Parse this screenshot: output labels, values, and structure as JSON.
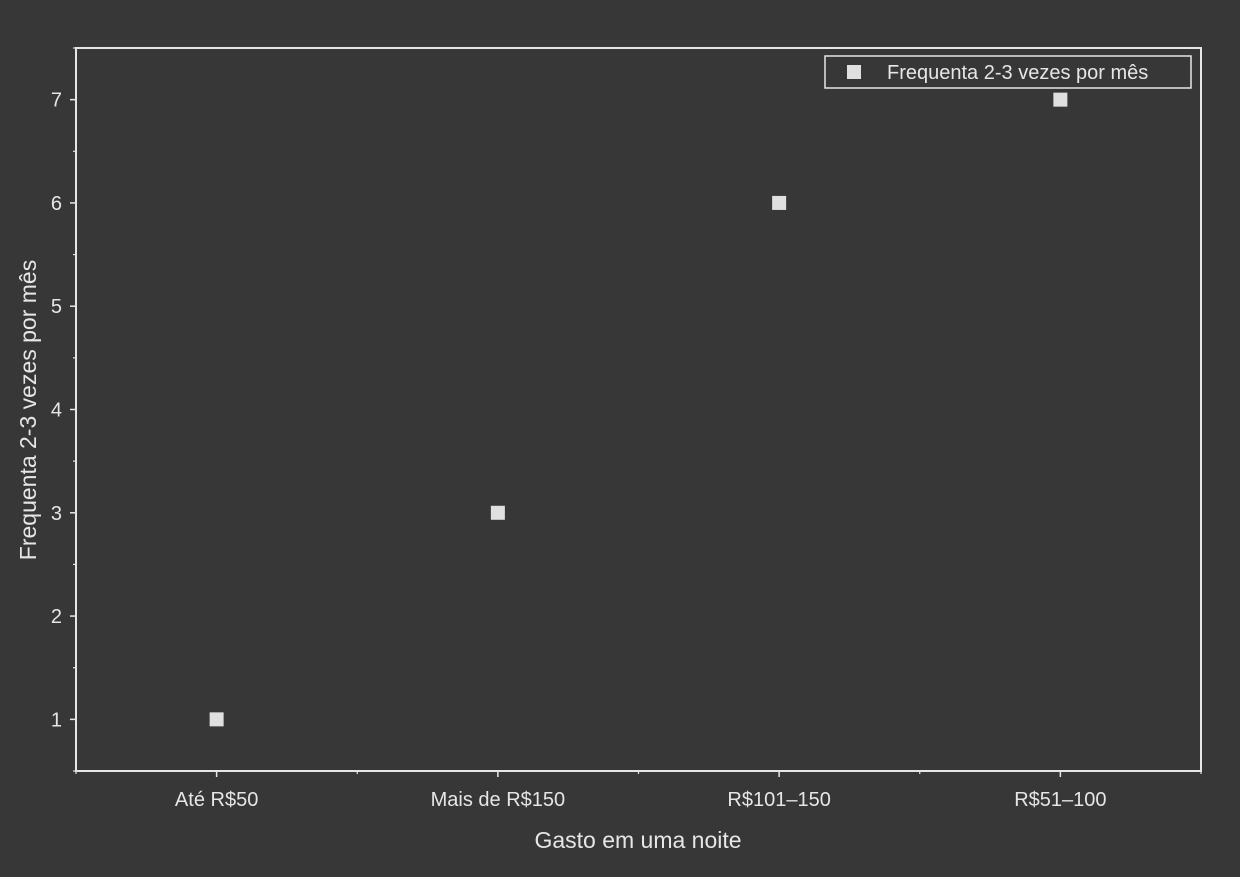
{
  "chart_data": {
    "type": "scatter",
    "title": "",
    "xlabel": "Gasto em uma noite",
    "ylabel": "Frequenta 2-3 vezes por mês",
    "categories": [
      "Até R$50",
      "Mais de R$150",
      "R$101–150",
      "R$51–100"
    ],
    "series": [
      {
        "name": "Frequenta 2-3 vezes por mês",
        "values": [
          1,
          3,
          6,
          7
        ]
      }
    ],
    "ylim": [
      0.5,
      7.5
    ],
    "yticks": [
      1,
      2,
      3,
      4,
      5,
      6,
      7
    ],
    "grid": false,
    "legend_position": "top-right",
    "colors": {
      "background": "#373737",
      "foreground": "#e6e6e6",
      "marker": "#e0e0e0"
    }
  }
}
